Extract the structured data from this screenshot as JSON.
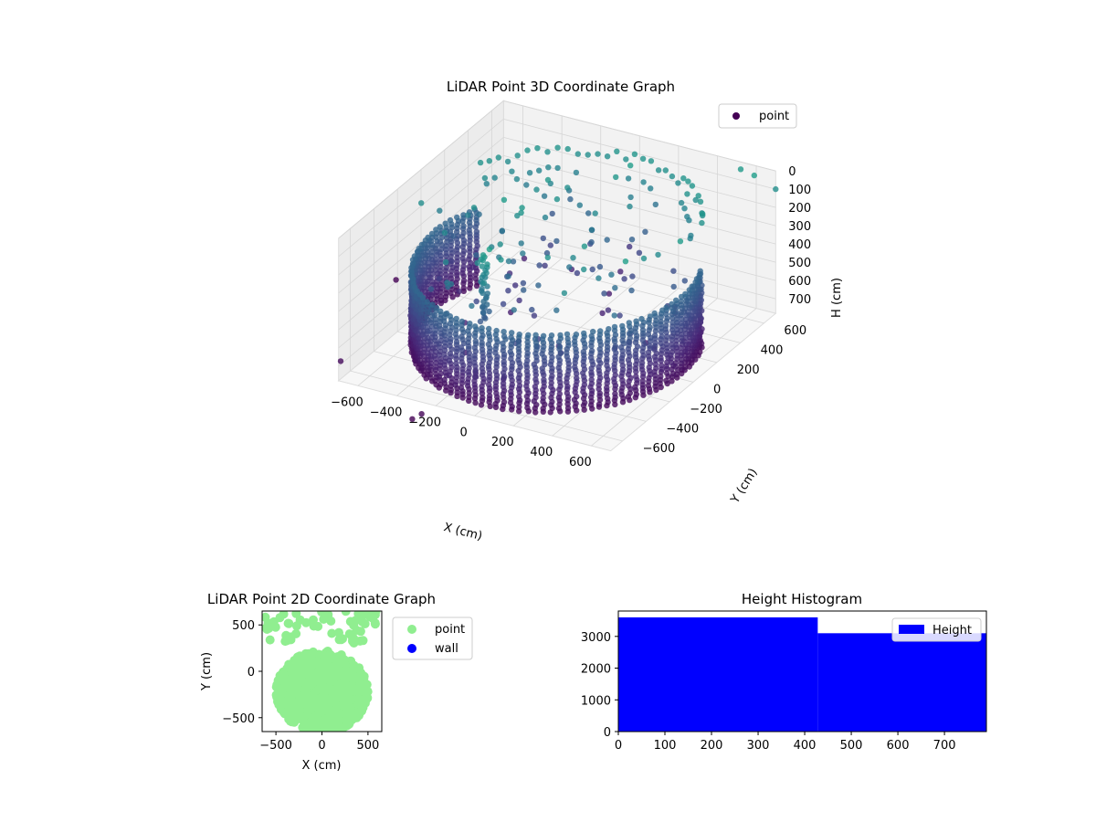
{
  "chart_data": [
    {
      "type": "scatter3d",
      "title": "LiDAR Point 3D Coordinate Graph",
      "xlabel": "X (cm)",
      "ylabel": "Y (cm)",
      "zlabel": "H (cm)",
      "xlim": [
        -700,
        700
      ],
      "ylim": [
        -700,
        700
      ],
      "zlim": [
        0,
        780
      ],
      "z_inverted": true,
      "xticks": [
        -600,
        -400,
        -200,
        0,
        200,
        400,
        600
      ],
      "yticks": [
        -600,
        -400,
        -200,
        0,
        200,
        400,
        600
      ],
      "zticks": [
        0,
        100,
        200,
        300,
        400,
        500,
        600,
        700
      ],
      "grid": true,
      "colormap": "viridis",
      "legend": {
        "entries": [
          "point"
        ],
        "position": "top-right"
      },
      "series": [
        {
          "name": "point",
          "color": "#440154",
          "structure": {
            "wall_ring": {
              "center": [
                0,
                0
              ],
              "radius": 640,
              "h_range": [
                330,
                760
              ],
              "h_step": 20,
              "angle_range_deg": [
                -205,
                25
              ],
              "angle_step_deg": 3.2
            },
            "ceiling_ring": {
              "radius": 640,
              "h": 90,
              "angle_range_deg": [
                25,
                155
              ],
              "angle_step_deg": 4
            },
            "column": {
              "center": [
                -80,
                -480
              ],
              "h_range": [
                40,
                400
              ],
              "h_step": 12
            },
            "scattered_count": 140,
            "outlier_points": [
              [
                700,
                700,
                100
              ],
              [
                -750,
                -600,
                740
              ],
              [
                -200,
                -820,
                760
              ],
              [
                -230,
                -850,
                780
              ],
              [
                -950,
                200,
                780
              ],
              [
                620,
                650,
                20
              ],
              [
                520,
                700,
                40
              ]
            ]
          }
        }
      ]
    },
    {
      "type": "scatter",
      "title": "LiDAR Point 2D Coordinate Graph",
      "xlabel": "X (cm)",
      "ylabel": "Y (cm)",
      "xlim": [
        -650,
        650
      ],
      "ylim": [
        -650,
        650
      ],
      "xticks": [
        -500,
        0,
        500
      ],
      "yticks": [
        -500,
        0,
        500
      ],
      "legend": {
        "entries": [
          "point",
          "wall"
        ],
        "position": "right"
      },
      "series": [
        {
          "name": "point",
          "color": "#90ee90",
          "shape": {
            "ellipse_center": [
              0,
              -220
            ],
            "ellipse_radii": [
              500,
              440
            ],
            "top_scatter_y_range": [
              300,
              650
            ]
          }
        },
        {
          "name": "wall",
          "color": "#0000ff",
          "points": []
        }
      ]
    },
    {
      "type": "histogram",
      "title": "Height Histogram",
      "xlabel": "",
      "ylabel": "",
      "xlim": [
        0,
        790
      ],
      "ylim": [
        0,
        3800
      ],
      "xticks": [
        0,
        100,
        200,
        300,
        400,
        500,
        600,
        700
      ],
      "yticks": [
        0,
        1000,
        2000,
        3000
      ],
      "legend": {
        "entries": [
          "Height"
        ],
        "position": "top-right"
      },
      "series": [
        {
          "name": "Height",
          "color": "#0000ff",
          "bins": [
            {
              "x0": 0,
              "x1": 428,
              "count": 3600
            },
            {
              "x0": 428,
              "x1": 790,
              "count": 3100
            }
          ]
        }
      ]
    }
  ]
}
